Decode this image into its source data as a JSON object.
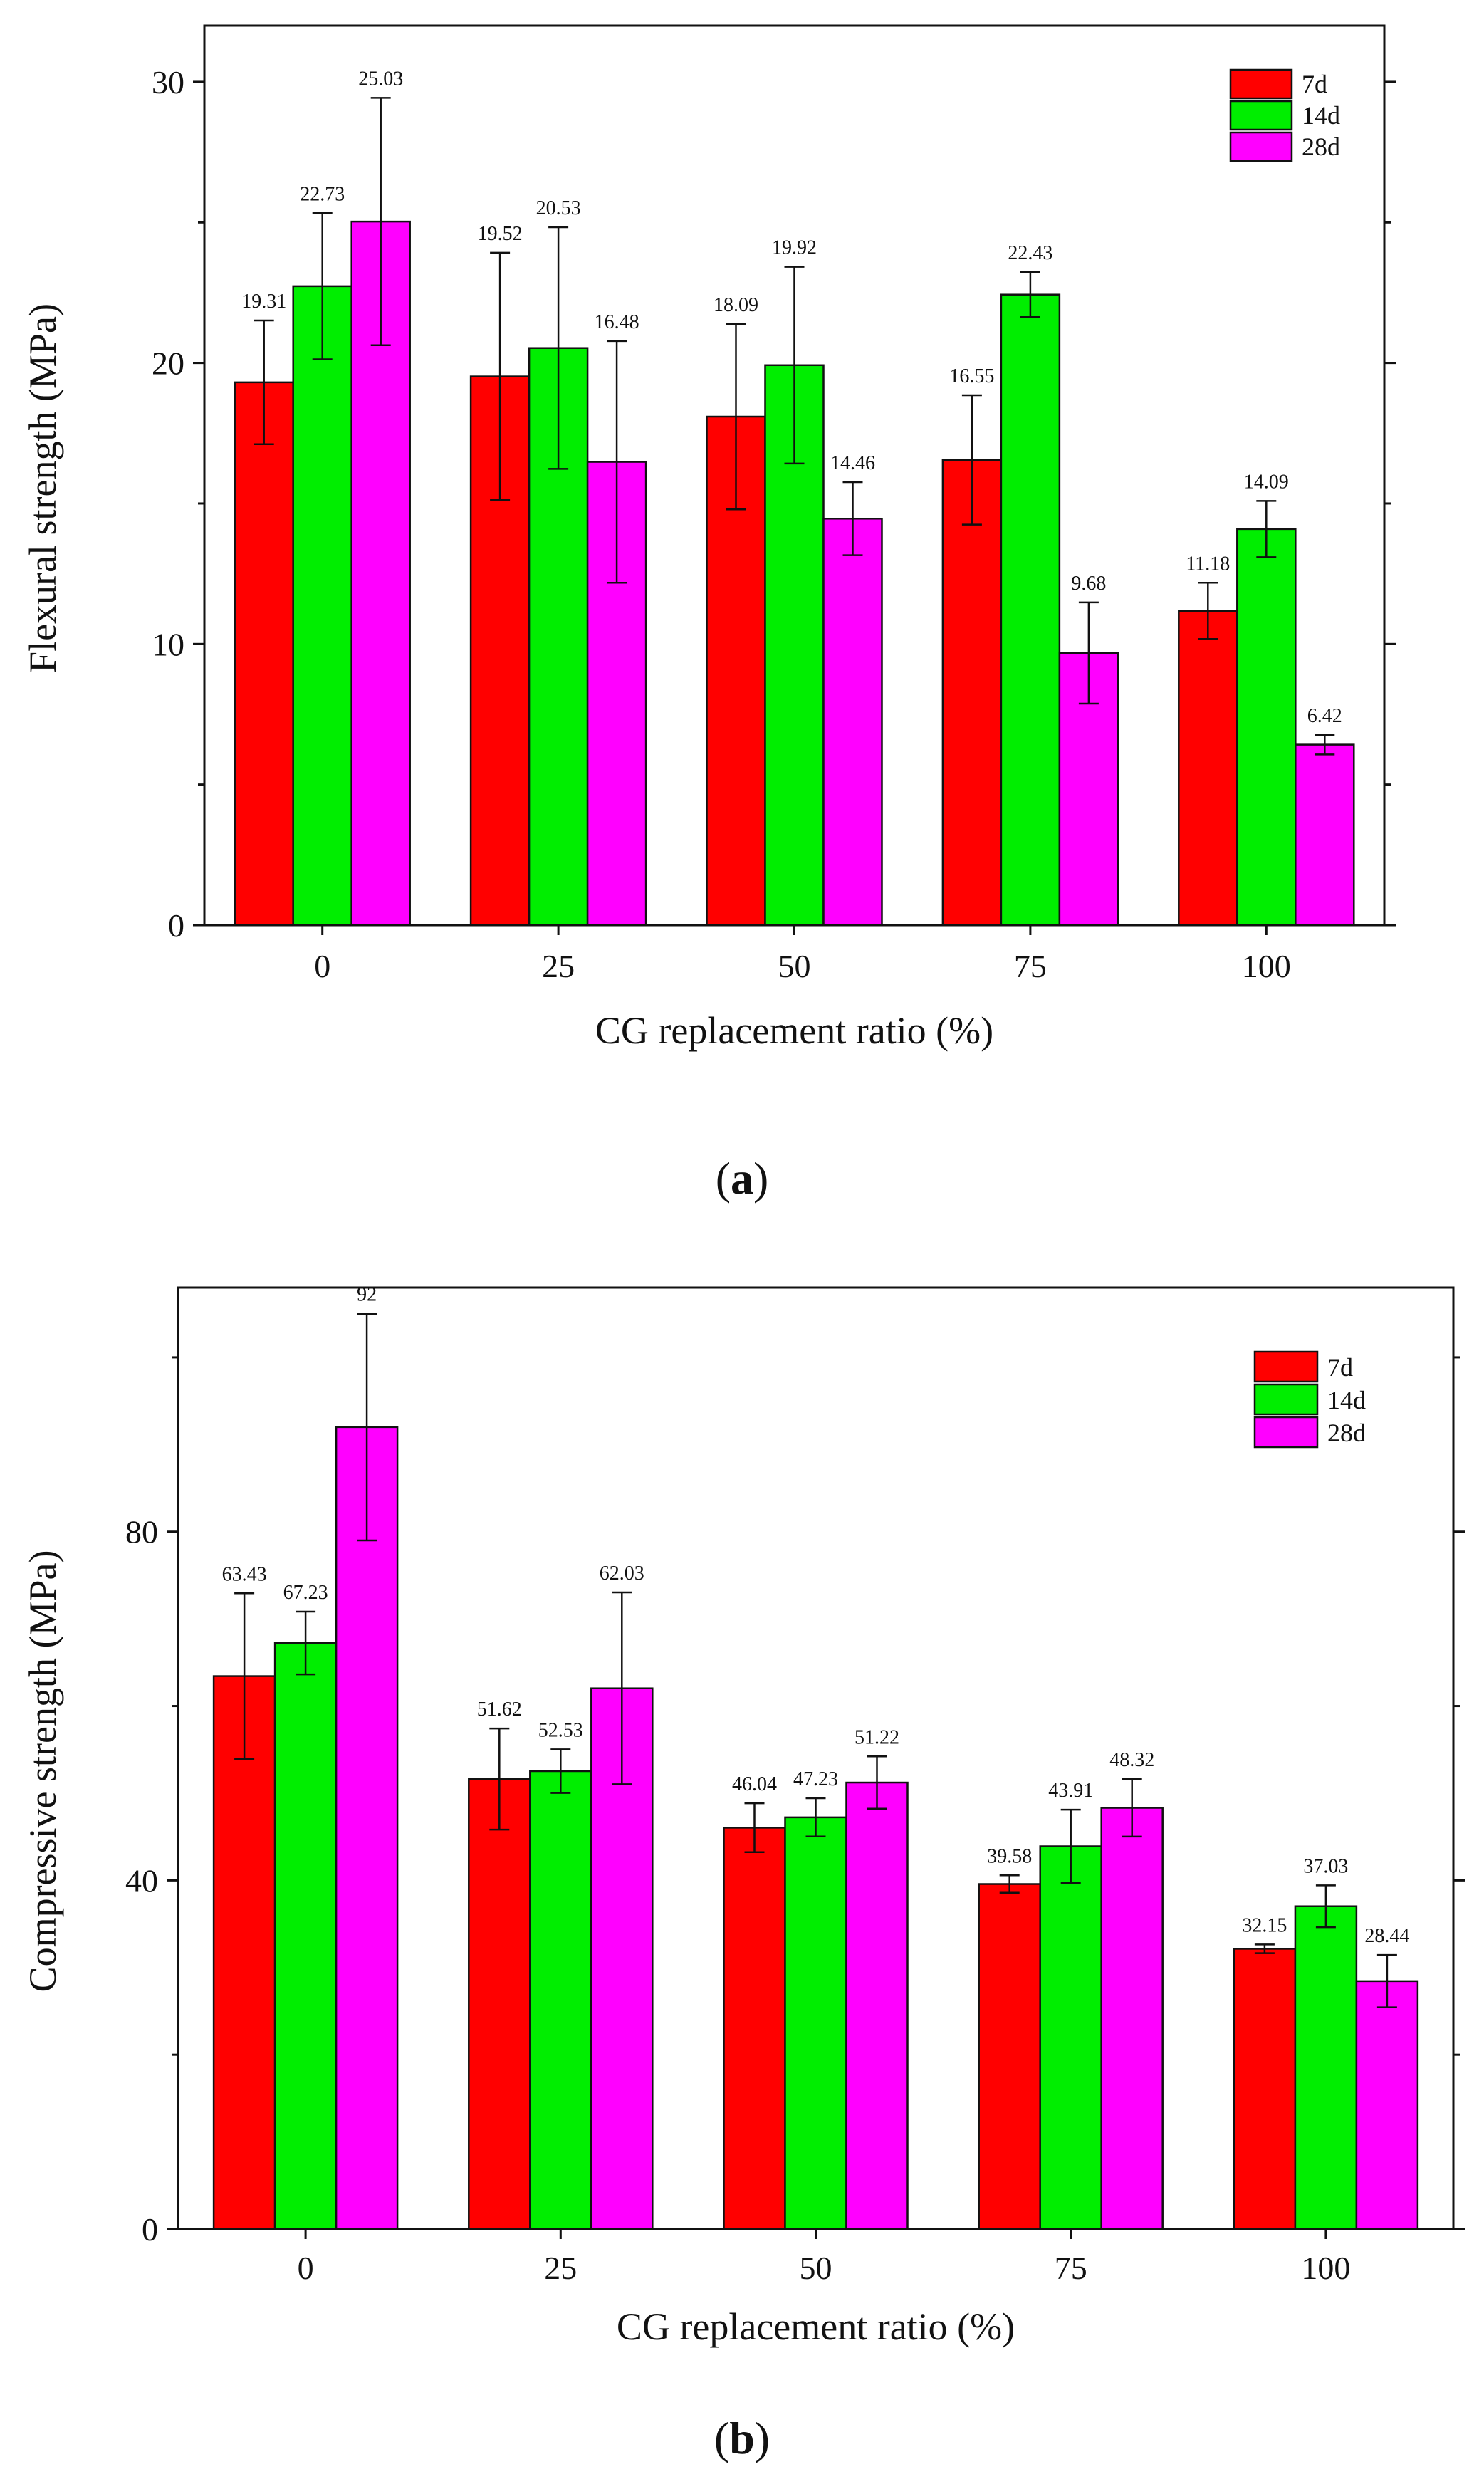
{
  "chart_data": [
    {
      "type": "bar",
      "panel": "(a)",
      "caption_letter": "a",
      "xlabel": "CG replacement ratio (%)",
      "ylabel": "Flexural strength (MPa)",
      "categories": [
        "0",
        "25",
        "50",
        "75",
        "100"
      ],
      "ylim": [
        0,
        32
      ],
      "yticks": [
        0,
        10,
        20,
        30
      ],
      "legend_position": "top-right",
      "series": [
        {
          "name": "7d",
          "color": "#ff0000",
          "values": [
            19.31,
            19.52,
            18.09,
            16.55,
            11.18
          ],
          "labels": [
            "19.31",
            "19.52",
            "18.09",
            "16.55",
            "11.18"
          ],
          "errors": [
            2.2,
            4.4,
            3.3,
            2.3,
            1.0
          ]
        },
        {
          "name": "14d",
          "color": "#00ee00",
          "values": [
            22.73,
            20.53,
            19.92,
            22.43,
            14.09
          ],
          "labels": [
            "22.73",
            "20.53",
            "19.92",
            "22.43",
            "14.09"
          ],
          "errors": [
            2.6,
            4.3,
            3.5,
            0.8,
            1.0
          ]
        },
        {
          "name": "28d",
          "color": "#ff00ff",
          "values": [
            25.03,
            16.48,
            14.46,
            9.68,
            6.42
          ],
          "labels": [
            "25.03",
            "16.48",
            "14.46",
            "9.68",
            "6.42"
          ],
          "errors": [
            4.4,
            4.3,
            1.3,
            1.8,
            0.35
          ]
        }
      ]
    },
    {
      "type": "bar",
      "panel": "(b)",
      "caption_letter": "b",
      "xlabel": "CG replacement ratio (%)",
      "ylabel": "Compressive  strength (MPa)",
      "categories": [
        "0",
        "25",
        "50",
        "75",
        "100"
      ],
      "ylim": [
        0,
        108
      ],
      "yticks": [
        0,
        40,
        80
      ],
      "legend_position": "top-right",
      "series": [
        {
          "name": "7d",
          "color": "#ff0000",
          "values": [
            63.43,
            51.62,
            46.04,
            39.58,
            32.15
          ],
          "labels": [
            "63.43",
            "51.62",
            "46.04",
            "39.58",
            "32.15"
          ],
          "errors": [
            9.5,
            5.8,
            2.8,
            1.0,
            0.5
          ]
        },
        {
          "name": "14d",
          "color": "#00ee00",
          "values": [
            67.23,
            52.53,
            47.23,
            43.91,
            37.03
          ],
          "labels": [
            "67.23",
            "52.53",
            "47.23",
            "43.91",
            "37.03"
          ],
          "errors": [
            3.6,
            2.5,
            2.2,
            4.2,
            2.4
          ]
        },
        {
          "name": "28d",
          "color": "#ff00ff",
          "values": [
            92,
            62.03,
            51.22,
            48.32,
            28.44
          ],
          "labels": [
            "92",
            "62.03",
            "51.22",
            "48.32",
            "28.44"
          ],
          "errors": [
            13,
            11,
            3.0,
            3.3,
            3.0
          ]
        }
      ]
    }
  ]
}
